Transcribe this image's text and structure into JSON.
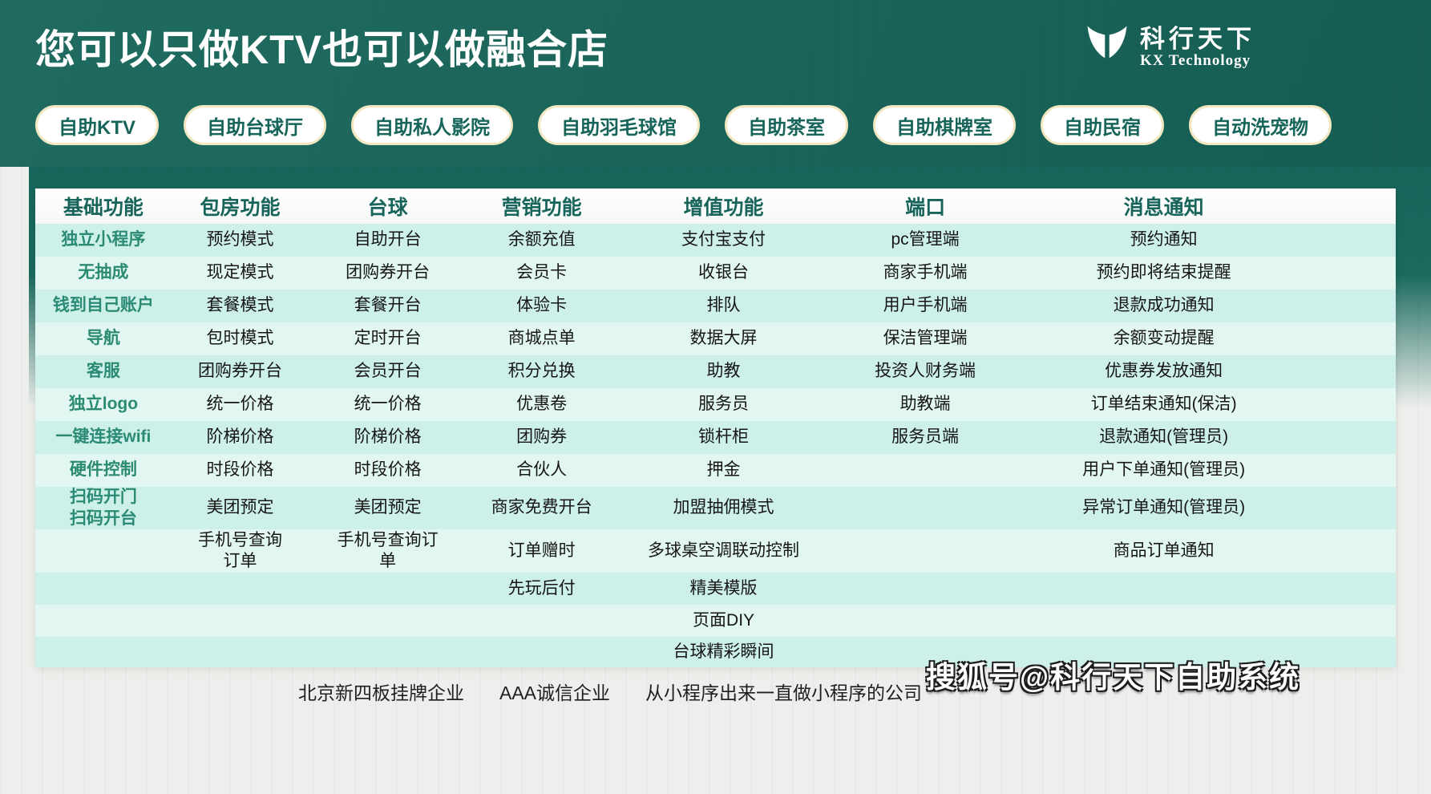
{
  "header": {
    "title": "您可以只做KTV也可以做融合店",
    "logo": {
      "icon": "butterfly-icon",
      "brand_cn": "科行天下",
      "brand_en": "KX Technology"
    }
  },
  "category_pills": [
    "自助KTV",
    "自助台球厅",
    "自助私人影院",
    "自助羽毛球馆",
    "自助茶室",
    "自助棋牌室",
    "自助民宿",
    "自动洗宠物"
  ],
  "table": {
    "columns": [
      "基础功能",
      "包房功能",
      "台球",
      "营销功能",
      "增值功能",
      "端口",
      "消息通知"
    ],
    "rows": [
      [
        "独立小程序",
        "预约模式",
        "自助开台",
        "余额充值",
        "支付宝支付",
        "pc管理端",
        "预约通知"
      ],
      [
        "无抽成",
        "现定模式",
        "团购券开台",
        "会员卡",
        "收银台",
        "商家手机端",
        "预约即将结束提醒"
      ],
      [
        "钱到自己账户",
        "套餐模式",
        "套餐开台",
        "体验卡",
        "排队",
        "用户手机端",
        "退款成功通知"
      ],
      [
        "导航",
        "包时模式",
        "定时开台",
        "商城点单",
        "数据大屏",
        "保洁管理端",
        "余额变动提醒"
      ],
      [
        "客服",
        "团购券开台",
        "会员开台",
        "积分兑换",
        "助教",
        "投资人财务端",
        "优惠券发放通知"
      ],
      [
        "独立logo",
        "统一价格",
        "统一价格",
        "优惠卷",
        "服务员",
        "助教端",
        "订单结束通知(保洁)"
      ],
      [
        "一键连接wifi",
        "阶梯价格",
        "阶梯价格",
        "团购券",
        "锁杆柜",
        "服务员端",
        "退款通知(管理员)"
      ],
      [
        "硬件控制",
        "时段价格",
        "时段价格",
        "合伙人",
        "押金",
        "",
        "用户下单通知(管理员)"
      ],
      [
        "扫码开门\n扫码开台",
        "美团预定",
        "美团预定",
        "商家免费开台",
        "加盟抽佣模式",
        "",
        "异常订单通知(管理员)"
      ],
      [
        "",
        "手机号查询\n订单",
        "手机号查询订\n单",
        "订单赠时",
        "多球桌空调联动控制",
        "",
        "商品订单通知"
      ],
      [
        "",
        "",
        "",
        "先玩后付",
        "精美模版",
        "",
        ""
      ],
      [
        "",
        "",
        "",
        "",
        "页面DIY",
        "",
        ""
      ],
      [
        "",
        "",
        "",
        "",
        "台球精彩瞬间",
        "",
        ""
      ]
    ]
  },
  "footer": {
    "credentials": [
      "北京新四板挂牌企业",
      "AAA诚信企业",
      "从小程序出来一直做小程序的公司"
    ]
  },
  "watermark": "搜狐号@科行天下自助系统",
  "colors": {
    "header_green": "#17655a",
    "row_teal": "#cdf0ea",
    "row_light": "#e3f7f2",
    "pill_border": "#f1e8c2",
    "first_column_text": "#2b8b72"
  }
}
